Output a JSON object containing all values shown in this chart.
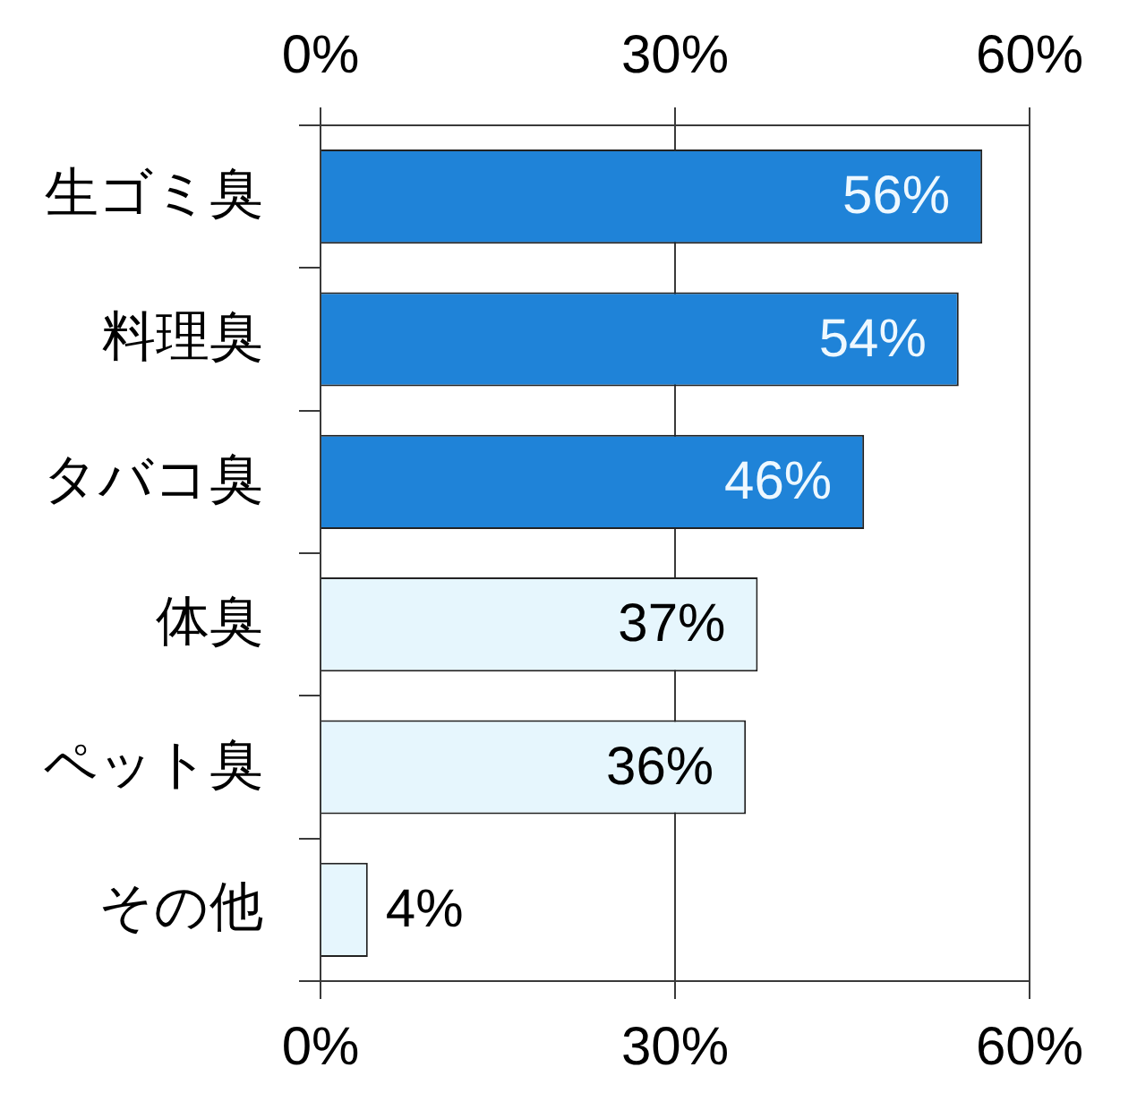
{
  "chart_data": {
    "type": "bar",
    "orientation": "horizontal",
    "categories": [
      "生ゴミ臭",
      "料理臭",
      "タバコ臭",
      "体臭",
      "ペット臭",
      "その他"
    ],
    "values": [
      56,
      54,
      46,
      37,
      36,
      4
    ],
    "colors": [
      "#1f83d8",
      "#1f83d8",
      "#1f83d8",
      "#e6f6fd",
      "#e6f6fd",
      "#e6f6fd"
    ],
    "value_labels": [
      "56%",
      "54%",
      "46%",
      "37%",
      "36%",
      "4%"
    ],
    "xlim": [
      0,
      60
    ],
    "xticks": [
      {
        "value": 0,
        "label": "0%"
      },
      {
        "value": 30,
        "label": "30%"
      },
      {
        "value": 60,
        "label": "60%"
      }
    ],
    "x2lim": [
      0,
      60
    ],
    "x2ticks": [
      {
        "value": 0,
        "label": "0%"
      },
      {
        "value": 30,
        "label": "30%"
      },
      {
        "value": 60,
        "label": "60%"
      }
    ],
    "grid": "x"
  }
}
